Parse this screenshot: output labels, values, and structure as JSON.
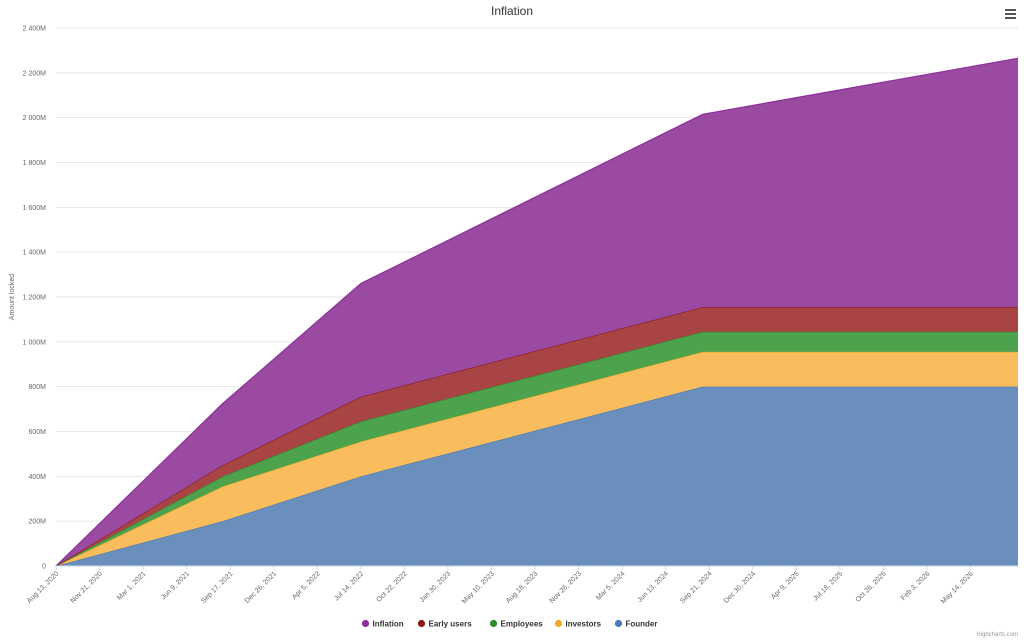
{
  "chart_data": {
    "type": "area",
    "stacked": true,
    "title": "Inflation",
    "xlabel": "",
    "ylabel": "Amount locked",
    "ylim": [
      0,
      2400
    ],
    "ytick_values": [
      0,
      200,
      400,
      600,
      800,
      1000,
      1200,
      1400,
      1600,
      1800,
      2000,
      2200,
      2400
    ],
    "ytick_labels": [
      "0",
      "200M",
      "400M",
      "600M",
      "800M",
      "1 000M",
      "1 200M",
      "1 400M",
      "1 600M",
      "1 800M",
      "2 000M",
      "2 200M",
      "2 400M"
    ],
    "x_dates": [
      "2020-08-13",
      "2021-08-31",
      "2022-07-14",
      "2024-09-06",
      "2026-08-31"
    ],
    "xlim": [
      "2020-08-13",
      "2026-08-31"
    ],
    "x_tick_dates": [
      "2020-08-13",
      "2020-11-21",
      "2021-03-01",
      "2021-06-09",
      "2021-09-17",
      "2021-12-26",
      "2022-04-05",
      "2022-07-14",
      "2022-10-22",
      "2023-01-30",
      "2023-05-10",
      "2023-08-18",
      "2023-11-26",
      "2024-03-05",
      "2024-06-13",
      "2024-09-21",
      "2024-12-30",
      "2025-04-09",
      "2025-07-18",
      "2025-10-26",
      "2026-02-03",
      "2026-05-14"
    ],
    "x_tick_labels": [
      "Aug 13, 2020",
      "Nov 21, 2020",
      "Mar 1, 2021",
      "Jun 9, 2021",
      "Sep 17, 2021",
      "Dec 26, 2021",
      "Apr 5, 2022",
      "Jul 14, 2022",
      "Oct 22, 2022",
      "Jan 30, 2023",
      "May 10, 2023",
      "Aug 18, 2023",
      "Nov 26, 2023",
      "Mar 5, 2024",
      "Jun 13, 2024",
      "Sep 21, 2024",
      "Dec 30, 2024",
      "Apr 9, 2025",
      "Jul 18, 2025",
      "Oct 26, 2025",
      "Feb 3, 2026",
      "May 14, 2026"
    ],
    "series": [
      {
        "name": "Founder",
        "color": "#4a7ab4",
        "fill": "#6a8fbc",
        "values": [
          0,
          200,
          400,
          800,
          800
        ]
      },
      {
        "name": "Investors",
        "color": "#f5a623",
        "fill": "#f9bd5e",
        "values": [
          0,
          155,
          155,
          155,
          155
        ]
      },
      {
        "name": "Employees",
        "color": "#2e8b2e",
        "fill": "#4da24d",
        "values": [
          0,
          45,
          90,
          90,
          90
        ]
      },
      {
        "name": "Early users",
        "color": "#8b1a1a",
        "fill": "#a84444",
        "values": [
          0,
          50,
          110,
          110,
          110
        ]
      },
      {
        "name": "Inflation",
        "color": "#8e2c9c",
        "fill": "#9b4aa2",
        "values": [
          0,
          275,
          505,
          860,
          1110
        ]
      }
    ],
    "legend": [
      "Inflation",
      "Early users",
      "Employees",
      "Investors",
      "Founder"
    ],
    "legend_colors": [
      "#8e2c9c",
      "#8b1a1a",
      "#2e8b2e",
      "#f5a623",
      "#4a7ab4"
    ],
    "legend_position": "bottom-center",
    "grid": true
  },
  "menu_icon": "hamburger-menu-icon",
  "credits": "Highcharts.com"
}
